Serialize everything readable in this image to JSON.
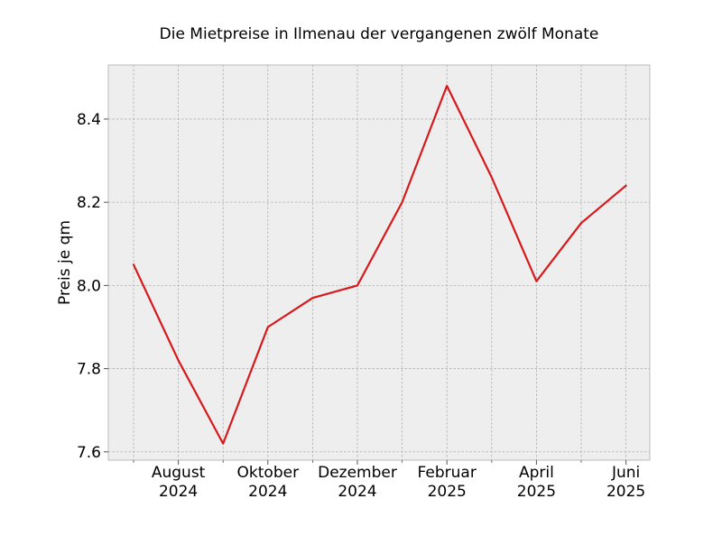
{
  "chart_data": {
    "type": "line",
    "title": "Die Mietpreise in Ilmenau der vergangenen zwölf Monate",
    "xlabel": "",
    "ylabel": "Preis je qm",
    "x": [
      "2024-07",
      "2024-08",
      "2024-09",
      "2024-10",
      "2024-11",
      "2024-12",
      "2025-01",
      "2025-02",
      "2025-03",
      "2025-04",
      "2025-05",
      "2025-06"
    ],
    "x_ticks": [
      {
        "x": "2024-08",
        "label": [
          "August",
          "2024"
        ]
      },
      {
        "x": "2024-10",
        "label": [
          "Oktober",
          "2024"
        ]
      },
      {
        "x": "2024-12",
        "label": [
          "Dezember",
          "2024"
        ]
      },
      {
        "x": "2025-02",
        "label": [
          "Februar",
          "2025"
        ]
      },
      {
        "x": "2025-04",
        "label": [
          "April",
          "2025"
        ]
      },
      {
        "x": "2025-06",
        "label": [
          "Juni",
          "2025"
        ]
      }
    ],
    "x_minor_ticks": [
      "2024-07",
      "2024-09",
      "2024-11",
      "2025-01",
      "2025-03",
      "2025-05"
    ],
    "series": [
      {
        "color": "#d7191c",
        "values": [
          8.05,
          7.82,
          7.62,
          7.9,
          7.97,
          8.0,
          8.2,
          8.48,
          8.26,
          8.01,
          8.15,
          8.24
        ]
      }
    ],
    "ylim": [
      7.58,
      8.53
    ],
    "yticks": [
      7.6,
      7.8,
      8.0,
      8.2,
      8.4
    ],
    "grid": true,
    "background": "#eeeeee"
  }
}
